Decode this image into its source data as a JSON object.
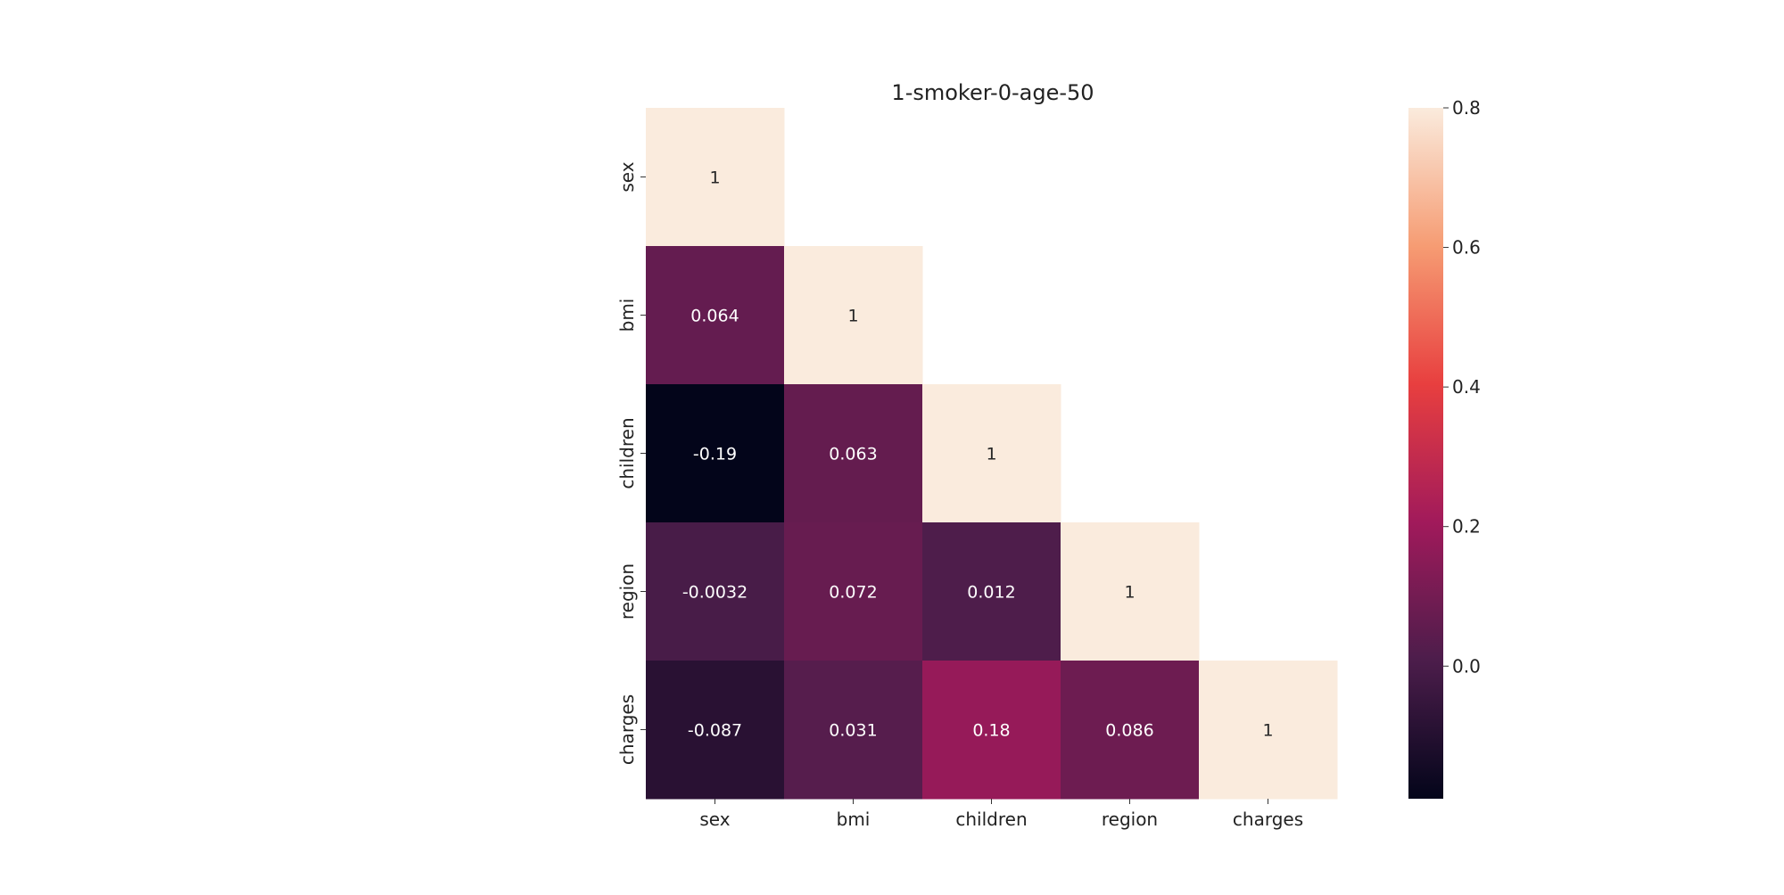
{
  "chart_data": {
    "type": "heatmap",
    "title": "1-smoker-0-age-50",
    "xlabel": "",
    "ylabel": "",
    "x_labels": [
      "sex",
      "bmi",
      "children",
      "region",
      "charges"
    ],
    "y_labels": [
      "sex",
      "bmi",
      "children",
      "region",
      "charges"
    ],
    "mask": "upper-triangle",
    "cells": [
      {
        "row": 0,
        "col": 0,
        "value": 1,
        "label": "1"
      },
      {
        "row": 1,
        "col": 0,
        "value": 0.064,
        "label": "0.064"
      },
      {
        "row": 1,
        "col": 1,
        "value": 1,
        "label": "1"
      },
      {
        "row": 2,
        "col": 0,
        "value": -0.19,
        "label": "-0.19"
      },
      {
        "row": 2,
        "col": 1,
        "value": 0.063,
        "label": "0.063"
      },
      {
        "row": 2,
        "col": 2,
        "value": 1,
        "label": "1"
      },
      {
        "row": 3,
        "col": 0,
        "value": -0.0032,
        "label": "-0.0032"
      },
      {
        "row": 3,
        "col": 1,
        "value": 0.072,
        "label": "0.072"
      },
      {
        "row": 3,
        "col": 2,
        "value": 0.012,
        "label": "0.012"
      },
      {
        "row": 3,
        "col": 3,
        "value": 1,
        "label": "1"
      },
      {
        "row": 4,
        "col": 0,
        "value": -0.087,
        "label": "-0.087"
      },
      {
        "row": 4,
        "col": 1,
        "value": 0.031,
        "label": "0.031"
      },
      {
        "row": 4,
        "col": 2,
        "value": 0.18,
        "label": "0.18"
      },
      {
        "row": 4,
        "col": 3,
        "value": 0.086,
        "label": "0.086"
      },
      {
        "row": 4,
        "col": 4,
        "value": 1,
        "label": "1"
      }
    ],
    "colorbar": {
      "vmin": -0.19,
      "vmax": 0.8,
      "ticks": [
        0.0,
        0.2,
        0.4,
        0.6,
        0.8
      ],
      "tick_labels": [
        "0.0",
        "0.2",
        "0.4",
        "0.6",
        "0.8"
      ],
      "colormap": "rocket",
      "colormap_stops": [
        "#03051a",
        "#4c1d4b",
        "#a11a5b",
        "#e83f3f",
        "#f69c73",
        "#faebdd"
      ]
    },
    "grid": false,
    "legend": "colorbar-right"
  }
}
